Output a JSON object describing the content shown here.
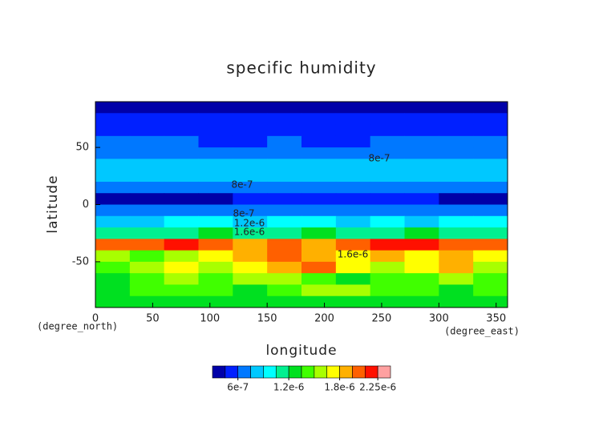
{
  "chart_data": {
    "type": "contour",
    "title": "specific humidity",
    "x_label": "longitude",
    "x_units": "(degree_east)",
    "y_label": "latitude",
    "y_units": "(degree_north)",
    "xlim": [
      0,
      360
    ],
    "ylim": [
      -90,
      90
    ],
    "xticks": [
      0,
      50,
      100,
      150,
      200,
      250,
      300,
      350
    ],
    "yticks": [
      -50,
      0,
      50
    ],
    "x": [
      15,
      45,
      75,
      105,
      135,
      165,
      195,
      225,
      255,
      285,
      315,
      345
    ],
    "y": [
      85,
      75,
      65,
      55,
      45,
      35,
      25,
      15,
      5,
      -5,
      -15,
      -25,
      -35,
      -45,
      -55,
      -65,
      -75,
      -85
    ],
    "z": [
      [
        3.75e-07,
        3.75e-07,
        3.75e-07,
        3.75e-07,
        3.75e-07,
        3.75e-07,
        3.75e-07,
        3.75e-07,
        3.75e-07,
        3.75e-07,
        3.75e-07,
        3.75e-07
      ],
      [
        5.25e-07,
        5.25e-07,
        5.25e-07,
        5.25e-07,
        5.25e-07,
        5.25e-07,
        5.25e-07,
        5.25e-07,
        5.25e-07,
        5.25e-07,
        5.25e-07,
        5.25e-07
      ],
      [
        5.25e-07,
        5.25e-07,
        5.25e-07,
        5.25e-07,
        5.25e-07,
        5.25e-07,
        5.25e-07,
        5.25e-07,
        5.25e-07,
        5.25e-07,
        5.25e-07,
        5.25e-07
      ],
      [
        6.75e-07,
        6.75e-07,
        6.75e-07,
        5.25e-07,
        5.25e-07,
        6.75e-07,
        5.25e-07,
        5.25e-07,
        6.75e-07,
        6.75e-07,
        6.75e-07,
        6.75e-07
      ],
      [
        6.75e-07,
        6.75e-07,
        6.75e-07,
        6.75e-07,
        6.75e-07,
        6.75e-07,
        6.75e-07,
        6.75e-07,
        6.75e-07,
        6.75e-07,
        6.75e-07,
        6.75e-07
      ],
      [
        8.25e-07,
        8.25e-07,
        8.25e-07,
        8.25e-07,
        8.25e-07,
        8.25e-07,
        8.25e-07,
        8.25e-07,
        8.25e-07,
        8.25e-07,
        8.25e-07,
        8.25e-07
      ],
      [
        8.25e-07,
        8.25e-07,
        8.25e-07,
        8.25e-07,
        8.25e-07,
        8.25e-07,
        8.25e-07,
        8.25e-07,
        8.25e-07,
        8.25e-07,
        8.25e-07,
        8.25e-07
      ],
      [
        6.75e-07,
        6.75e-07,
        6.75e-07,
        6.75e-07,
        6.75e-07,
        6.75e-07,
        6.75e-07,
        6.75e-07,
        6.75e-07,
        6.75e-07,
        6.75e-07,
        6.75e-07
      ],
      [
        3.75e-07,
        3.75e-07,
        3.75e-07,
        3.75e-07,
        5.25e-07,
        5.25e-07,
        5.25e-07,
        5.25e-07,
        5.25e-07,
        5.25e-07,
        3.75e-07,
        3.75e-07
      ],
      [
        6.75e-07,
        6.75e-07,
        6.75e-07,
        6.75e-07,
        6.75e-07,
        6.75e-07,
        6.75e-07,
        6.75e-07,
        6.75e-07,
        6.75e-07,
        6.75e-07,
        6.75e-07
      ],
      [
        8.25e-07,
        8.25e-07,
        9.75e-07,
        9.75e-07,
        8.25e-07,
        9.75e-07,
        9.75e-07,
        8.25e-07,
        9.75e-07,
        8.25e-07,
        9.75e-07,
        9.75e-07
      ],
      [
        1.125e-06,
        1.125e-06,
        1.125e-06,
        1.275e-06,
        1.125e-06,
        1.125e-06,
        1.275e-06,
        1.125e-06,
        1.125e-06,
        1.275e-06,
        1.125e-06,
        1.125e-06
      ],
      [
        2.025e-06,
        2.025e-06,
        2.175e-06,
        2.025e-06,
        1.875e-06,
        2.025e-06,
        1.875e-06,
        2.025e-06,
        2.175e-06,
        2.175e-06,
        2.025e-06,
        2.025e-06
      ],
      [
        1.575e-06,
        1.425e-06,
        1.575e-06,
        1.725e-06,
        1.875e-06,
        2.025e-06,
        1.875e-06,
        1.725e-06,
        1.875e-06,
        1.725e-06,
        1.875e-06,
        1.725e-06
      ],
      [
        1.425e-06,
        1.575e-06,
        1.725e-06,
        1.575e-06,
        1.725e-06,
        1.875e-06,
        2.025e-06,
        1.725e-06,
        1.575e-06,
        1.725e-06,
        1.875e-06,
        1.575e-06
      ],
      [
        1.275e-06,
        1.425e-06,
        1.575e-06,
        1.425e-06,
        1.575e-06,
        1.575e-06,
        1.425e-06,
        1.275e-06,
        1.425e-06,
        1.425e-06,
        1.575e-06,
        1.425e-06
      ],
      [
        1.275e-06,
        1.425e-06,
        1.425e-06,
        1.425e-06,
        1.275e-06,
        1.425e-06,
        1.575e-06,
        1.575e-06,
        1.425e-06,
        1.425e-06,
        1.275e-06,
        1.425e-06
      ],
      [
        1.275e-06,
        1.275e-06,
        1.275e-06,
        1.275e-06,
        1.275e-06,
        1.275e-06,
        1.275e-06,
        1.275e-06,
        1.275e-06,
        1.275e-06,
        1.275e-06,
        1.275e-06
      ]
    ],
    "levels": [
      3e-07,
      4.5e-07,
      6e-07,
      7.5e-07,
      9e-07,
      1.05e-06,
      1.2e-06,
      1.35e-06,
      1.5e-06,
      1.65e-06,
      1.8e-06,
      1.95e-06,
      2.1e-06,
      2.25e-06,
      2.4e-06
    ],
    "colors": [
      "#0000a8",
      "#0020ff",
      "#0078ff",
      "#00c8ff",
      "#00ffff",
      "#00f090",
      "#00e020",
      "#40ff00",
      "#a8ff00",
      "#ffff00",
      "#ffb000",
      "#ff6000",
      "#ff1000",
      "#ffa0a0"
    ],
    "colorbar_ticks": [
      {
        "value": 6e-07,
        "label": "6e-7"
      },
      {
        "value": 1.2e-06,
        "label": "1.2e-6"
      },
      {
        "value": 1.8e-06,
        "label": "1.8e-6"
      },
      {
        "value": 2.25e-06,
        "label": "2.25e-6"
      }
    ],
    "annotations": [
      "8e-7",
      "8e-7",
      "8e-7",
      "1.2e-6",
      "1.6e-6",
      "1.6e-6"
    ]
  }
}
